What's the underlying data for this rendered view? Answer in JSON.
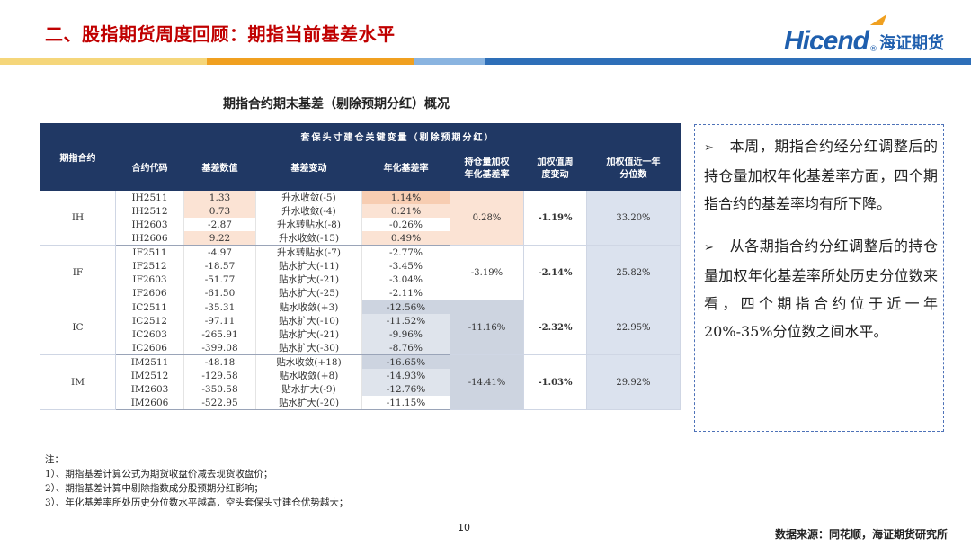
{
  "header": {
    "title": "二、股指期货周度回顾：期指当前基差水平",
    "logo_en": "Hicend",
    "logo_reg": "®",
    "logo_cn": "海证期货"
  },
  "table": {
    "title": "期指合约期末基差（剔除预期分红）概况",
    "group_header": "套保头寸建仓关键变量（剔除预期分红）",
    "col_contract": "期指合约",
    "columns": [
      "合约代码",
      "基差数值",
      "基差变动",
      "年化基差率",
      "持仓量加权\n年化基差率",
      "加权值周\n度变动",
      "加权值近一年\n分位数"
    ],
    "groups": [
      {
        "name": "IH",
        "weighted_rate": "0.28%",
        "weekly_change": "-1.19%",
        "percentile": "33.20%",
        "rows": [
          {
            "code": "IH2511",
            "basis": "1.33",
            "change": "升水收敛(-5)",
            "rate": "1.14%"
          },
          {
            "code": "IH2512",
            "basis": "0.73",
            "change": "升水收敛(-4)",
            "rate": "0.21%"
          },
          {
            "code": "IH2603",
            "basis": "-2.87",
            "change": "升水转贴水(-8)",
            "rate": "-0.26%"
          },
          {
            "code": "IH2606",
            "basis": "9.22",
            "change": "升水收敛(-15)",
            "rate": "0.49%"
          }
        ]
      },
      {
        "name": "IF",
        "weighted_rate": "-3.19%",
        "weekly_change": "-2.14%",
        "percentile": "25.82%",
        "rows": [
          {
            "code": "IF2511",
            "basis": "-4.97",
            "change": "升水转贴水(-7)",
            "rate": "-2.77%"
          },
          {
            "code": "IF2512",
            "basis": "-18.57",
            "change": "贴水扩大(-11)",
            "rate": "-3.45%"
          },
          {
            "code": "IF2603",
            "basis": "-51.77",
            "change": "贴水扩大(-21)",
            "rate": "-3.04%"
          },
          {
            "code": "IF2606",
            "basis": "-61.50",
            "change": "贴水扩大(-25)",
            "rate": "-2.11%"
          }
        ]
      },
      {
        "name": "IC",
        "weighted_rate": "-11.16%",
        "weekly_change": "-2.32%",
        "percentile": "22.95%",
        "rows": [
          {
            "code": "IC2511",
            "basis": "-35.31",
            "change": "贴水收敛(+3)",
            "rate": "-12.56%"
          },
          {
            "code": "IC2512",
            "basis": "-97.11",
            "change": "贴水扩大(-10)",
            "rate": "-11.52%"
          },
          {
            "code": "IC2603",
            "basis": "-265.91",
            "change": "贴水扩大(-21)",
            "rate": "-9.96%"
          },
          {
            "code": "IC2606",
            "basis": "-399.08",
            "change": "贴水扩大(-30)",
            "rate": "-8.76%"
          }
        ]
      },
      {
        "name": "IM",
        "weighted_rate": "-14.41%",
        "weekly_change": "-1.03%",
        "percentile": "29.92%",
        "rows": [
          {
            "code": "IM2511",
            "basis": "-48.18",
            "change": "贴水收敛(+18)",
            "rate": "-16.65%"
          },
          {
            "code": "IM2512",
            "basis": "-129.58",
            "change": "贴水收敛(+8)",
            "rate": "-14.93%"
          },
          {
            "code": "IM2603",
            "basis": "-350.58",
            "change": "贴水扩大(-9)",
            "rate": "-12.76%"
          },
          {
            "code": "IM2606",
            "basis": "-522.95",
            "change": "贴水扩大(-20)",
            "rate": "-11.15%"
          }
        ]
      }
    ]
  },
  "commentary": {
    "bullet_icon": "arrow-bullet-icon",
    "bullet_glyph": "➢",
    "paragraphs": [
      "本周，期指合约经分红调整后的持仓量加权年化基差率方面，四个期指合约的基差率均有所下降。",
      "从各期指合约分红调整后的持仓量加权年化基差率所处历史分位数来看，四个期指合约位于近一年20%-35%分位数之间水平。"
    ]
  },
  "notes": {
    "heading": "注：",
    "items": [
      "1）、期指基差计算公式为期货收盘价减去现货收盘价；",
      "2）、期指基差计算中剔除指数成分股预期分红影响；",
      "3）、年化基差率所处历史分位数水平越高，空头套保头寸建仓优势越大；"
    ]
  },
  "footer": {
    "page_number": "10",
    "source": "数据来源：同花顺，海证期货研究所"
  },
  "colors": {
    "title_red": "#c00000",
    "header_navy": "#203864",
    "brand_blue": "#1f5fae",
    "highlight_orange": "#f7cdb2",
    "highlight_gray": "#cdd4e0",
    "bar_colors": [
      "#f5d67a",
      "#f0a020",
      "#8ab4e0",
      "#2e6fb8"
    ]
  }
}
